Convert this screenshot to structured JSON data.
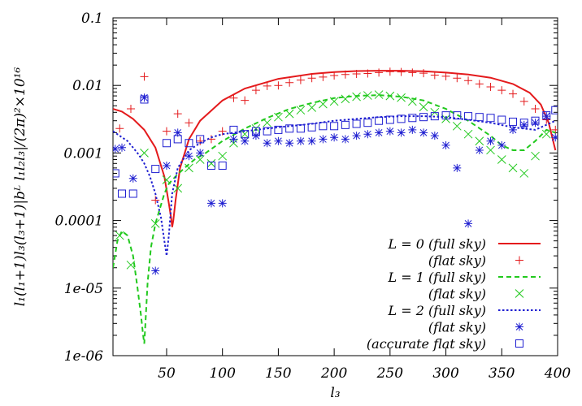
{
  "chart_data": {
    "type": "line",
    "xlabel": "l₃",
    "ylabel": "l₁(l₁+1)l₃(l₃+1)|bᴸ l₁l₂l₃|/(2π)²×10¹⁶",
    "x_ticks": [
      "50",
      "100",
      "150",
      "200",
      "250",
      "300",
      "350",
      "400"
    ],
    "x_tick_values": [
      50,
      100,
      150,
      200,
      250,
      300,
      350,
      400
    ],
    "y_ticks": [
      "0.1",
      "0.01",
      "0.001",
      "0.0001",
      "1e-05",
      "1e-06"
    ],
    "y_tick_values": [
      0.1,
      0.01,
      0.001,
      0.0001,
      1e-05,
      1e-06
    ],
    "y_scale": "log",
    "xlim": [
      2,
      400
    ],
    "ylim": [
      1e-06,
      0.1
    ],
    "legend_position": "bottom-right",
    "series": [
      {
        "name": "L = 0 (full sky)",
        "style": "solid",
        "color": "#e41a1c",
        "x": [
          2,
          10,
          20,
          30,
          40,
          48,
          52,
          54,
          55,
          56,
          58,
          62,
          70,
          80,
          100,
          120,
          150,
          180,
          200,
          220,
          240,
          260,
          280,
          300,
          320,
          340,
          360,
          375,
          385,
          392,
          398
        ],
        "y": [
          0.0045,
          0.0041,
          0.0032,
          0.0022,
          0.0012,
          0.00045,
          0.00018,
          0.00011,
          8e-05,
          0.0001,
          0.0002,
          0.0006,
          0.0016,
          0.003,
          0.006,
          0.009,
          0.0125,
          0.0148,
          0.0158,
          0.0163,
          0.0165,
          0.0165,
          0.0162,
          0.0155,
          0.0145,
          0.013,
          0.0105,
          0.0078,
          0.0052,
          0.0028,
          0.0011
        ]
      },
      {
        "name": "(flat sky)",
        "style": "plus",
        "color": "#e41a1c",
        "x": [
          8,
          18,
          30,
          40,
          50,
          60,
          70,
          80,
          90,
          100,
          110,
          120,
          130,
          140,
          150,
          160,
          170,
          180,
          190,
          200,
          210,
          220,
          230,
          240,
          250,
          260,
          270,
          280,
          290,
          300,
          310,
          320,
          330,
          340,
          350,
          360,
          370,
          380,
          390,
          398
        ],
        "y": [
          0.0023,
          0.0045,
          0.0135,
          0.0002,
          0.0021,
          0.0038,
          0.0028,
          0.0015,
          0.0016,
          0.0021,
          0.0065,
          0.006,
          0.0085,
          0.0098,
          0.01,
          0.011,
          0.012,
          0.0128,
          0.0133,
          0.014,
          0.0145,
          0.0148,
          0.015,
          0.0155,
          0.016,
          0.0158,
          0.0155,
          0.0152,
          0.0142,
          0.0137,
          0.0128,
          0.0118,
          0.0105,
          0.0095,
          0.0085,
          0.0075,
          0.0058,
          0.0045,
          0.0031,
          0.0022
        ]
      },
      {
        "name": "L = 1 (full sky)",
        "style": "dashed",
        "color": "#22c91e",
        "x": [
          2,
          6,
          10,
          15,
          20,
          24,
          27,
          29,
          30,
          31,
          33,
          36,
          40,
          44,
          48,
          52,
          58,
          66,
          75,
          85,
          100,
          120,
          140,
          160,
          180,
          200,
          220,
          240,
          260,
          280,
          300,
          320,
          340,
          350,
          360,
          370,
          380,
          390,
          398
        ],
        "y": [
          2e-05,
          5e-05,
          7e-05,
          6e-05,
          3e-05,
          1e-05,
          4e-06,
          2e-06,
          1.5e-06,
          3e-06,
          1.2e-05,
          4e-05,
          9e-05,
          0.00015,
          0.00025,
          0.00035,
          0.00045,
          0.0006,
          0.0008,
          0.001,
          0.0015,
          0.0023,
          0.0033,
          0.0045,
          0.0055,
          0.0065,
          0.007,
          0.0072,
          0.0068,
          0.006,
          0.0045,
          0.003,
          0.0018,
          0.0013,
          0.0011,
          0.0011,
          0.0015,
          0.0022,
          0.002
        ]
      },
      {
        "name": "(flat sky)",
        "style": "cross",
        "color": "#22c91e",
        "x": [
          8,
          18,
          30,
          40,
          50,
          60,
          70,
          80,
          90,
          100,
          110,
          120,
          130,
          140,
          150,
          160,
          170,
          180,
          190,
          200,
          210,
          220,
          230,
          240,
          250,
          260,
          270,
          280,
          290,
          300,
          310,
          320,
          330,
          340,
          350,
          360,
          370,
          380,
          390
        ],
        "y": [
          6e-05,
          2.2e-05,
          0.001,
          9e-05,
          0.0004,
          0.0003,
          0.0006,
          0.0008,
          0.0007,
          0.0009,
          0.0014,
          0.0019,
          0.0023,
          0.0028,
          0.0034,
          0.0038,
          0.0043,
          0.0047,
          0.0053,
          0.0058,
          0.0063,
          0.0068,
          0.0071,
          0.0073,
          0.007,
          0.0066,
          0.0058,
          0.0048,
          0.004,
          0.0032,
          0.0025,
          0.0019,
          0.0015,
          0.0011,
          0.0008,
          0.0006,
          0.0005,
          0.0009,
          0.0019
        ]
      },
      {
        "name": "L = 2 (full sky)",
        "style": "dotted",
        "color": "#1f1fd1",
        "x": [
          2,
          8,
          15,
          20,
          25,
          30,
          35,
          40,
          45,
          48,
          50,
          52,
          55,
          60,
          70,
          80,
          90,
          100,
          120,
          140,
          160,
          180,
          200,
          220,
          240,
          260,
          280,
          300,
          320,
          340,
          360,
          380,
          392,
          398
        ],
        "y": [
          0.0021,
          0.0018,
          0.0015,
          0.0012,
          0.00095,
          0.0007,
          0.00045,
          0.00025,
          0.00011,
          5e-05,
          3e-05,
          6e-05,
          0.00025,
          0.0006,
          0.0011,
          0.0014,
          0.0017,
          0.0019,
          0.0021,
          0.0023,
          0.0025,
          0.0027,
          0.003,
          0.0032,
          0.0034,
          0.0035,
          0.0035,
          0.0034,
          0.0031,
          0.0028,
          0.0024,
          0.0022,
          0.0027,
          0.003
        ]
      },
      {
        "name": "(flat sky)",
        "style": "star",
        "color": "#1f1fd1",
        "x": [
          4,
          10,
          20,
          30,
          40,
          50,
          60,
          70,
          80,
          90,
          100,
          110,
          120,
          130,
          140,
          150,
          160,
          170,
          180,
          190,
          200,
          210,
          220,
          230,
          240,
          250,
          260,
          270,
          280,
          290,
          300,
          310,
          320,
          330,
          340,
          350,
          360,
          370,
          380,
          390,
          398
        ],
        "y": [
          0.00115,
          0.0012,
          0.00042,
          0.0066,
          1.8e-05,
          0.00065,
          0.002,
          0.0009,
          0.001,
          0.00018,
          0.00018,
          0.0016,
          0.0015,
          0.0018,
          0.0014,
          0.0015,
          0.0014,
          0.0015,
          0.0015,
          0.0016,
          0.0017,
          0.0016,
          0.0018,
          0.0019,
          0.002,
          0.0021,
          0.002,
          0.0022,
          0.002,
          0.0018,
          0.0013,
          0.0006,
          9e-05,
          0.0011,
          0.0015,
          0.0013,
          0.0022,
          0.0026,
          0.0028,
          0.0035,
          0.0017
        ]
      },
      {
        "name": "(accurate flat sky)",
        "style": "square",
        "color": "#1f1fd1",
        "x": [
          4,
          10,
          20,
          30,
          40,
          50,
          60,
          70,
          80,
          90,
          100,
          110,
          120,
          130,
          140,
          150,
          160,
          170,
          180,
          190,
          200,
          210,
          220,
          230,
          240,
          250,
          260,
          270,
          280,
          290,
          300,
          310,
          320,
          330,
          340,
          350,
          360,
          370,
          380,
          390,
          398
        ],
        "y": [
          0.0005,
          0.00025,
          0.00025,
          0.0062,
          0.00058,
          0.0014,
          0.0016,
          0.0014,
          0.0016,
          0.00065,
          0.00065,
          0.0022,
          0.0019,
          0.0021,
          0.0021,
          0.0022,
          0.0023,
          0.0023,
          0.0024,
          0.0025,
          0.0025,
          0.0026,
          0.0027,
          0.0028,
          0.003,
          0.0031,
          0.0032,
          0.0033,
          0.0034,
          0.0035,
          0.0036,
          0.0036,
          0.0035,
          0.0034,
          0.0033,
          0.0031,
          0.0029,
          0.0028,
          0.003,
          0.0036,
          0.0043
        ]
      }
    ]
  }
}
